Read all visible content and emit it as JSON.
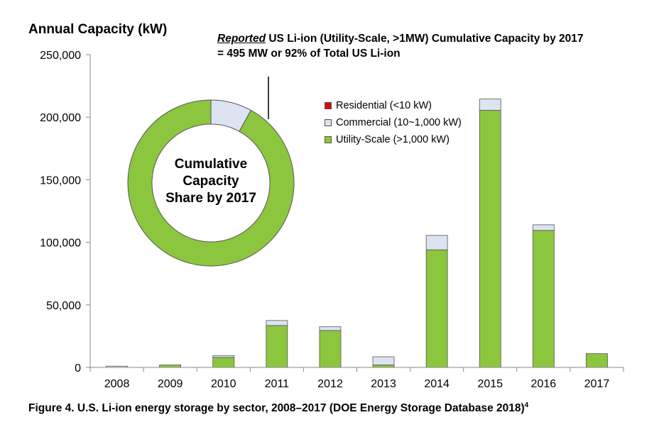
{
  "y_title": "Annual Capacity (kW)",
  "annotation": {
    "italic_part": "Reported",
    "line1_rest": " US Li-ion (Utility-Scale, >1MW) Cumulative Capacity by 2017",
    "line2": "= 495 MW or 92% of Total US Li-ion"
  },
  "donut": {
    "label_lines": [
      "Cumulative",
      "Capacity",
      "Share by 2017"
    ],
    "shares": [
      {
        "name": "Utility-Scale",
        "value": 92,
        "color": "#8cc63f"
      },
      {
        "name": "Commercial",
        "value": 8,
        "color": "#dde3f0"
      }
    ]
  },
  "legend": [
    {
      "label": "Residential (<10 kW)",
      "color": "#e3000f"
    },
    {
      "label": "Commercial (10~1,000 kW)",
      "color": "#dde3f0"
    },
    {
      "label": "Utility-Scale (>1,000 kW)",
      "color": "#8cc63f"
    }
  ],
  "caption": "Figure 4. U.S. Li-ion energy storage by sector, 2008–2017 (DOE Energy Storage Database 2018)",
  "caption_sup": "4",
  "chart_data": {
    "type": "bar",
    "stacked": true,
    "categories": [
      "2008",
      "2009",
      "2010",
      "2011",
      "2012",
      "2013",
      "2014",
      "2015",
      "2016",
      "2017"
    ],
    "series": [
      {
        "name": "Residential (<10 kW)",
        "color": "#e3000f",
        "values": [
          0,
          0,
          0,
          0,
          0,
          0,
          0,
          0,
          0,
          0
        ]
      },
      {
        "name": "Utility-Scale (>1,000 kW)",
        "color": "#8cc63f",
        "values": [
          0,
          2000,
          8000,
          33500,
          29500,
          2000,
          94000,
          205500,
          109500,
          11000
        ]
      },
      {
        "name": "Commercial (10~1,000 kW)",
        "color": "#dde3f0",
        "values": [
          1000,
          0,
          1500,
          4000,
          3000,
          6500,
          11500,
          9000,
          4500,
          0
        ]
      }
    ],
    "yticks": [
      "0",
      "50,000",
      "100,000",
      "150,000",
      "200,000",
      "250,000"
    ],
    "ytick_values": [
      0,
      50000,
      100000,
      150000,
      200000,
      250000
    ],
    "ylim": [
      0,
      250000
    ],
    "ylabel": "Annual Capacity (kW)",
    "xlabel": "",
    "grid": false,
    "legend_position": "top-right"
  }
}
